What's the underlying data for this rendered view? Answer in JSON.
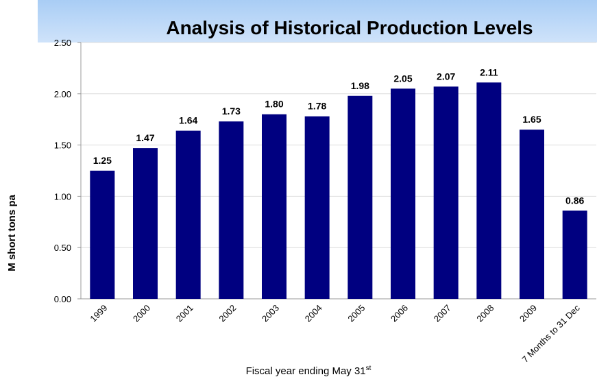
{
  "chart_data": {
    "type": "bar",
    "title": "Analysis of Historical Production Levels",
    "y_label": "M short tons pa",
    "x_label": {
      "text": "Fiscal year ending May 31",
      "superscript": "st"
    },
    "categories": [
      "1999",
      "2000",
      "2001",
      "2002",
      "2003",
      "2004",
      "2005",
      "2006",
      "2007",
      "2008",
      "2009",
      "7 Months to 31 Dec"
    ],
    "values": [
      1.25,
      1.47,
      1.64,
      1.73,
      1.8,
      1.78,
      1.98,
      2.05,
      2.07,
      2.11,
      1.65,
      0.86
    ],
    "value_labels": [
      "1.25",
      "1.47",
      "1.64",
      "1.73",
      "1.80",
      "1.78",
      "1.98",
      "2.05",
      "2.07",
      "2.11",
      "1.65",
      "0.86"
    ],
    "color": "#000080",
    "ylim": [
      0,
      2.5
    ],
    "yticks": [
      {
        "value": 0,
        "label": "0.00"
      },
      {
        "value": 0.5,
        "label": "0.50"
      },
      {
        "value": 1,
        "label": "1.00"
      },
      {
        "value": 1.5,
        "label": "1.50"
      },
      {
        "value": 2,
        "label": "2.00"
      },
      {
        "value": 2.5,
        "label": "2.50"
      }
    ],
    "grid": true
  }
}
